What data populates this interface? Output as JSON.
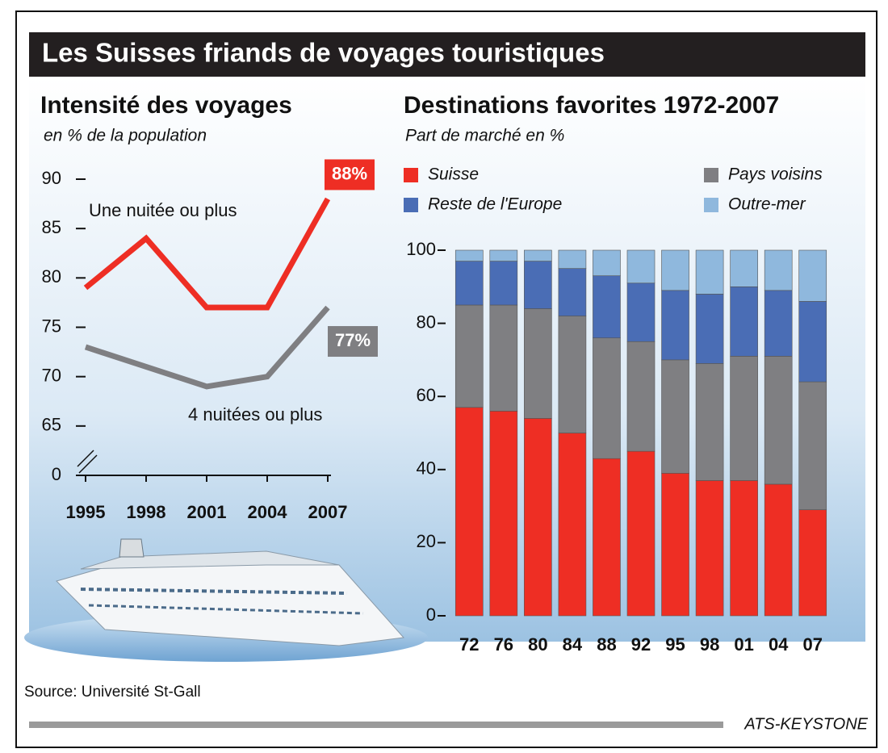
{
  "title": "Les Suisses friands de voyages touristiques",
  "source": "Source: Université St-Gall",
  "credit": "ATS-KEYSTONE",
  "chart_data": [
    {
      "type": "line",
      "title": "Intensité des voyages",
      "subtitle": "en % de la population",
      "x": [
        1995,
        1998,
        2001,
        2004,
        2007
      ],
      "xlim": [
        1995,
        2007
      ],
      "xticks": [
        1995,
        1998,
        2001,
        2004,
        2007
      ],
      "ylim": [
        0,
        90
      ],
      "yticks": [
        0,
        65,
        70,
        75,
        80,
        85,
        90
      ],
      "axis_break": [
        0,
        60
      ],
      "series": [
        {
          "name": "Une nuitée ou plus",
          "color": "#ee2e24",
          "values": [
            79,
            84,
            77,
            77,
            88
          ],
          "value_labels": [
            null,
            null,
            null,
            null,
            "88%"
          ]
        },
        {
          "name": "4 nuitées ou plus",
          "color": "#7f7f82",
          "values": [
            73,
            71,
            69,
            70,
            77
          ],
          "value_labels": [
            null,
            null,
            null,
            null,
            "77%"
          ]
        }
      ]
    },
    {
      "type": "stacked-bar",
      "title": "Destinations favorites 1972-2007",
      "subtitle": "Part de marché en %",
      "categories": [
        "72",
        "76",
        "80",
        "84",
        "88",
        "92",
        "95",
        "98",
        "01",
        "04",
        "07"
      ],
      "ylim": [
        0,
        100
      ],
      "yticks": [
        0,
        20,
        40,
        60,
        80,
        100
      ],
      "series": [
        {
          "name": "Suisse",
          "color": "#ee2e24",
          "values": [
            57,
            56,
            54,
            50,
            43,
            45,
            39,
            37,
            37,
            36,
            29
          ]
        },
        {
          "name": "Pays voisins",
          "color": "#7f7f82",
          "values": [
            28,
            29,
            30,
            32,
            33,
            30,
            31,
            32,
            34,
            35,
            35
          ]
        },
        {
          "name": "Reste de l'Europe",
          "color": "#4a6db5",
          "values": [
            12,
            12,
            13,
            13,
            17,
            16,
            19,
            19,
            19,
            18,
            22
          ]
        },
        {
          "name": "Outre-mer",
          "color": "#8fb8dd",
          "values": [
            3,
            3,
            3,
            5,
            7,
            9,
            11,
            12,
            10,
            11,
            14
          ]
        }
      ]
    }
  ]
}
